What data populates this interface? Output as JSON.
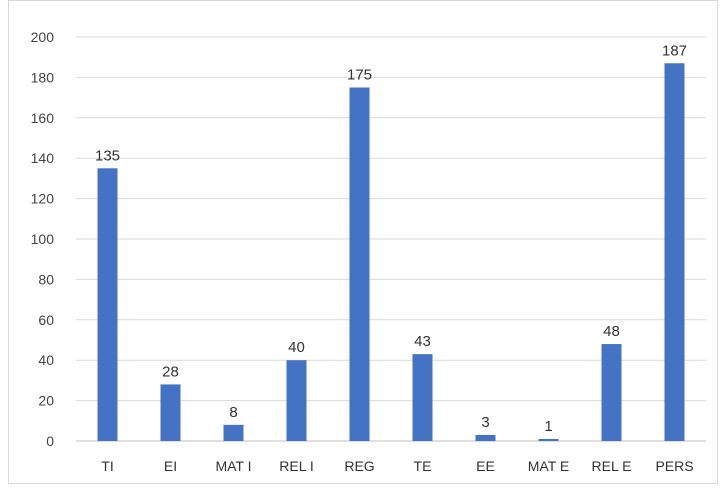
{
  "chart_data": {
    "type": "bar",
    "categories": [
      "TI",
      "EI",
      "MAT I",
      "REL I",
      "REG",
      "TE",
      "EE",
      "MAT E",
      "REL E",
      "PERS"
    ],
    "values": [
      135,
      28,
      8,
      40,
      175,
      43,
      3,
      1,
      48,
      187
    ],
    "title": "",
    "xlabel": "",
    "ylabel": "",
    "ylim": [
      0,
      200
    ],
    "yticks": [
      0,
      20,
      40,
      60,
      80,
      100,
      120,
      140,
      160,
      180,
      200
    ],
    "grid": true,
    "legend": "none",
    "bar_color": "#4472c4",
    "grid_color": "#d9d9d9",
    "data_labels": true
  }
}
